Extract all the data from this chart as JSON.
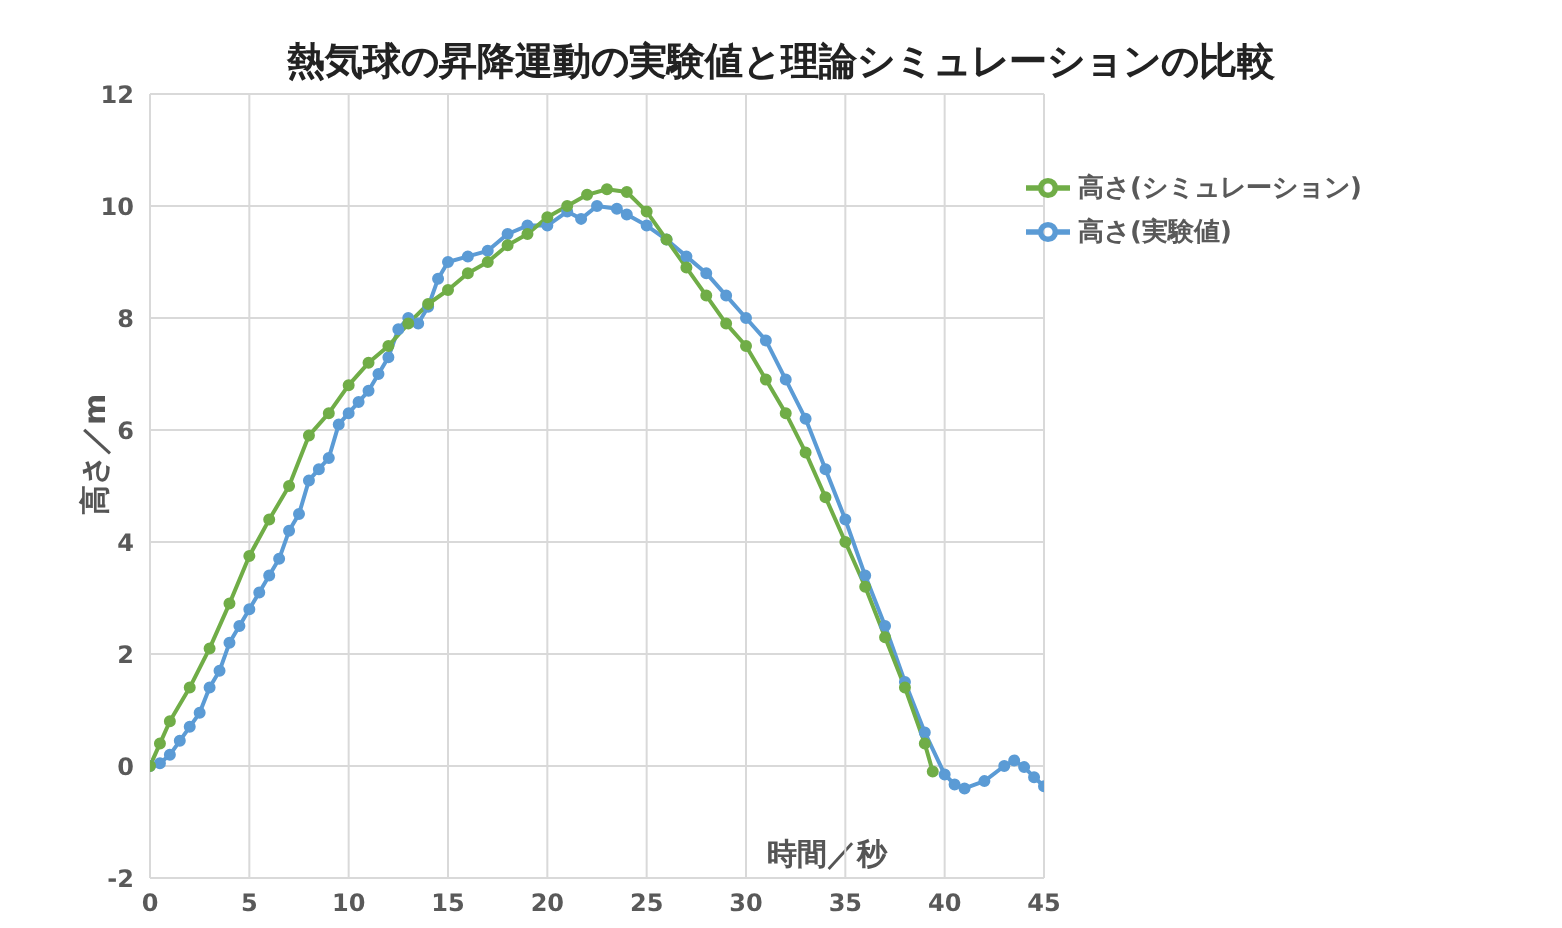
{
  "chart_data": {
    "type": "line",
    "title": "熱気球の昇降運動の実験値と理論シミュレーションの比較",
    "xlabel": "時間／秒",
    "ylabel": "高さ／m",
    "xlim": [
      0,
      45
    ],
    "xticks": [
      0,
      5,
      10,
      15,
      20,
      25,
      30,
      35,
      40,
      45
    ],
    "ylim": [
      -2,
      12
    ],
    "yticks": [
      -2,
      0,
      2,
      4,
      6,
      8,
      10,
      12
    ],
    "grid": true,
    "legend": "top right",
    "marker": "circle",
    "line_style": "solid",
    "series": [
      {
        "name": "高さ(実験値)",
        "color": "#5b9bd5",
        "x": [
          0,
          0.5,
          1,
          1.5,
          2,
          2.5,
          3,
          3.5,
          4,
          4.5,
          5,
          5.5,
          6,
          6.5,
          7,
          7.5,
          8,
          8.5,
          9,
          9.5,
          10,
          10.5,
          11,
          11.5,
          12,
          12.5,
          13,
          13.5,
          14,
          14.5,
          15,
          16,
          17,
          18,
          19,
          20,
          21,
          21.7,
          22.5,
          23.5,
          24,
          25,
          26,
          27,
          28,
          29,
          30,
          31,
          32,
          33,
          34,
          35,
          36,
          37,
          38,
          39,
          40,
          40.5,
          41,
          42,
          43,
          43.5,
          44,
          44.5,
          45
        ],
        "values": [
          0,
          0.05,
          0.2,
          0.45,
          0.7,
          0.95,
          1.4,
          1.7,
          2.2,
          2.5,
          2.8,
          3.1,
          3.4,
          3.7,
          4.2,
          4.5,
          5.1,
          5.3,
          5.5,
          6.1,
          6.3,
          6.5,
          6.7,
          7.0,
          7.3,
          7.8,
          8.0,
          7.9,
          8.2,
          8.7,
          9.0,
          9.1,
          9.2,
          9.5,
          9.65,
          9.65,
          9.9,
          9.77,
          10.0,
          9.95,
          9.85,
          9.65,
          9.4,
          9.1,
          8.8,
          8.4,
          8.0,
          7.6,
          6.9,
          6.2,
          5.3,
          4.4,
          3.4,
          2.5,
          1.5,
          0.6,
          -0.15,
          -0.33,
          -0.4,
          -0.27,
          0,
          0.1,
          -0.02,
          -0.2,
          -0.36
        ]
      },
      {
        "name": "高さ(シミュレーション)",
        "color": "#70ad47",
        "x": [
          0,
          0.5,
          1,
          2,
          3,
          4,
          5,
          6,
          7,
          8,
          9,
          10,
          11,
          12,
          13,
          14,
          15,
          16,
          17,
          18,
          19,
          20,
          21,
          22,
          23,
          24,
          25,
          26,
          27,
          28,
          29,
          30,
          31,
          32,
          33,
          34,
          35,
          36,
          37,
          38,
          39,
          39.4
        ],
        "values": [
          0,
          0.4,
          0.8,
          1.4,
          2.1,
          2.9,
          3.75,
          4.4,
          5.0,
          5.9,
          6.3,
          6.8,
          7.2,
          7.5,
          7.9,
          8.25,
          8.5,
          8.8,
          9.0,
          9.3,
          9.5,
          9.8,
          10.0,
          10.2,
          10.3,
          10.25,
          9.9,
          9.4,
          8.9,
          8.4,
          7.9,
          7.5,
          6.9,
          6.3,
          5.6,
          4.8,
          4.0,
          3.2,
          2.3,
          1.4,
          0.4,
          -0.1
        ]
      }
    ]
  }
}
